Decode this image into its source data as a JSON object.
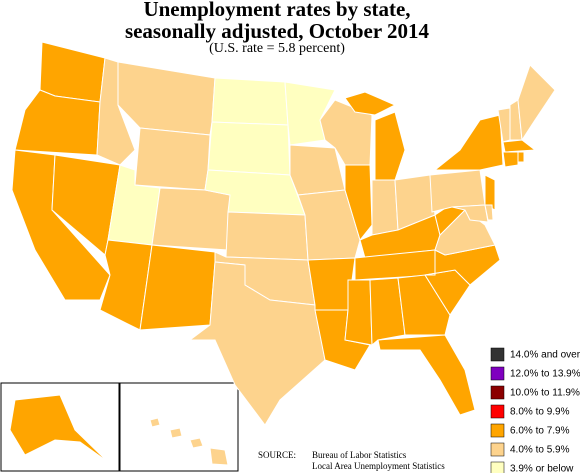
{
  "title": [
    "Unemployment rates by state,",
    "seasonally adjusted, October 2014"
  ],
  "subtitle": "(U.S. rate = 5.8 percent)",
  "legend": [
    {
      "label": "14.0% and over",
      "color": "#333333"
    },
    {
      "label": "12.0% to 13.9%",
      "color": "#7f00bf"
    },
    {
      "label": "10.0% to 11.9%",
      "color": "#8b0000"
    },
    {
      "label": "8.0% to 9.9%",
      "color": "#ff0000"
    },
    {
      "label": "6.0% to 7.9%",
      "color": "#ffa500"
    },
    {
      "label": "4.0% to 5.9%",
      "color": "#fdd38d"
    },
    {
      "label": "3.9% or below",
      "color": "#ffffc0"
    }
  ],
  "map": {
    "regions": [
      4,
      4,
      4,
      4,
      5,
      5,
      5,
      6,
      4,
      5,
      4,
      6,
      6,
      6,
      5,
      5,
      5,
      6,
      5,
      5,
      4,
      4,
      5,
      4,
      4,
      5,
      5,
      4,
      4,
      4,
      4,
      4,
      4,
      4,
      4,
      5,
      4,
      5,
      4,
      4,
      5,
      5,
      5,
      5,
      5,
      4,
      4,
      4,
      4,
      5
    ]
  },
  "source": {
    "label": "SOURCE:",
    "lines": [
      "Bureau of Labor Statistics",
      "Local Area Unemployment Statistics"
    ]
  }
}
